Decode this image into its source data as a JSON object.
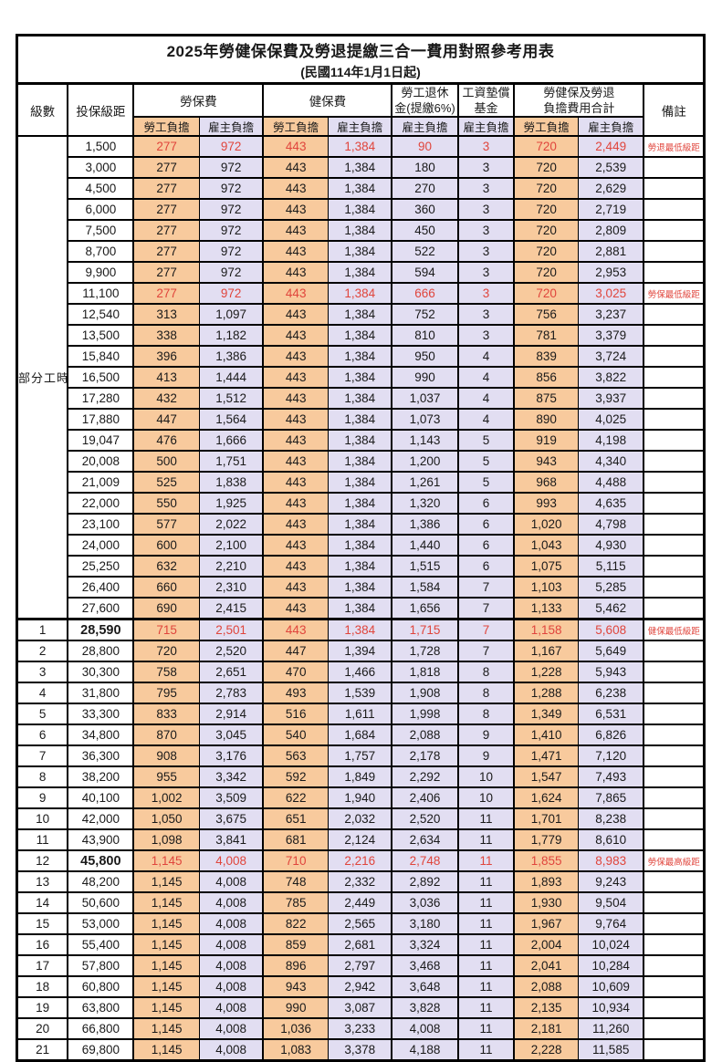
{
  "title": "2025年勞健保保費及勞退提繳三合一費用對照參考用表",
  "subtitle": "(民國114年1月1日起)",
  "header": {
    "level": "級數",
    "bracket": "投保級距",
    "labor_insurance": "勞保費",
    "health_insurance": "健保費",
    "pension": [
      "勞工退休",
      "金(提繳6%)"
    ],
    "wage_fund": [
      "工資墊償",
      "基金"
    ],
    "total": [
      "勞健保及勞退",
      "負擔費用合計"
    ],
    "employee": "勞工負擔",
    "employer": "雇主負擔",
    "remark": "備註"
  },
  "part_time": {
    "label": "部分工時",
    "row_count": 23
  },
  "colors": {
    "employee_bg": "#F8CA9D",
    "employer_bg": "#E2DEF2",
    "highlight_red": "#E0453C"
  },
  "notes": {
    "pension_min": "勞退最低級距",
    "labor_min": "勞保最低級距",
    "health_min": "健保最低級距",
    "labor_max": "勞保最高級距"
  },
  "rows": [
    {
      "level": "",
      "bracket": "1,500",
      "values": [
        "277",
        "972",
        "443",
        "1,384",
        "90",
        "3",
        "720",
        "2,449"
      ],
      "note": "勞退最低級距",
      "red": true
    },
    {
      "level": "",
      "bracket": "3,000",
      "values": [
        "277",
        "972",
        "443",
        "1,384",
        "180",
        "3",
        "720",
        "2,539"
      ]
    },
    {
      "level": "",
      "bracket": "4,500",
      "values": [
        "277",
        "972",
        "443",
        "1,384",
        "270",
        "3",
        "720",
        "2,629"
      ]
    },
    {
      "level": "",
      "bracket": "6,000",
      "values": [
        "277",
        "972",
        "443",
        "1,384",
        "360",
        "3",
        "720",
        "2,719"
      ]
    },
    {
      "level": "",
      "bracket": "7,500",
      "values": [
        "277",
        "972",
        "443",
        "1,384",
        "450",
        "3",
        "720",
        "2,809"
      ]
    },
    {
      "level": "",
      "bracket": "8,700",
      "values": [
        "277",
        "972",
        "443",
        "1,384",
        "522",
        "3",
        "720",
        "2,881"
      ]
    },
    {
      "level": "",
      "bracket": "9,900",
      "values": [
        "277",
        "972",
        "443",
        "1,384",
        "594",
        "3",
        "720",
        "2,953"
      ]
    },
    {
      "level": "",
      "bracket": "11,100",
      "values": [
        "277",
        "972",
        "443",
        "1,384",
        "666",
        "3",
        "720",
        "3,025"
      ],
      "note": "勞保最低級距",
      "red": true
    },
    {
      "level": "",
      "bracket": "12,540",
      "values": [
        "313",
        "1,097",
        "443",
        "1,384",
        "752",
        "3",
        "756",
        "3,237"
      ]
    },
    {
      "level": "",
      "bracket": "13,500",
      "values": [
        "338",
        "1,182",
        "443",
        "1,384",
        "810",
        "3",
        "781",
        "3,379"
      ]
    },
    {
      "level": "",
      "bracket": "15,840",
      "values": [
        "396",
        "1,386",
        "443",
        "1,384",
        "950",
        "4",
        "839",
        "3,724"
      ]
    },
    {
      "level": "",
      "bracket": "16,500",
      "values": [
        "413",
        "1,444",
        "443",
        "1,384",
        "990",
        "4",
        "856",
        "3,822"
      ]
    },
    {
      "level": "",
      "bracket": "17,280",
      "values": [
        "432",
        "1,512",
        "443",
        "1,384",
        "1,037",
        "4",
        "875",
        "3,937"
      ]
    },
    {
      "level": "",
      "bracket": "17,880",
      "values": [
        "447",
        "1,564",
        "443",
        "1,384",
        "1,073",
        "4",
        "890",
        "4,025"
      ]
    },
    {
      "level": "",
      "bracket": "19,047",
      "values": [
        "476",
        "1,666",
        "443",
        "1,384",
        "1,143",
        "5",
        "919",
        "4,198"
      ]
    },
    {
      "level": "",
      "bracket": "20,008",
      "values": [
        "500",
        "1,751",
        "443",
        "1,384",
        "1,200",
        "5",
        "943",
        "4,340"
      ]
    },
    {
      "level": "",
      "bracket": "21,009",
      "values": [
        "525",
        "1,838",
        "443",
        "1,384",
        "1,261",
        "5",
        "968",
        "4,488"
      ]
    },
    {
      "level": "",
      "bracket": "22,000",
      "values": [
        "550",
        "1,925",
        "443",
        "1,384",
        "1,320",
        "6",
        "993",
        "4,635"
      ]
    },
    {
      "level": "",
      "bracket": "23,100",
      "values": [
        "577",
        "2,022",
        "443",
        "1,384",
        "1,386",
        "6",
        "1,020",
        "4,798"
      ]
    },
    {
      "level": "",
      "bracket": "24,000",
      "values": [
        "600",
        "2,100",
        "443",
        "1,384",
        "1,440",
        "6",
        "1,043",
        "4,930"
      ]
    },
    {
      "level": "",
      "bracket": "25,250",
      "values": [
        "632",
        "2,210",
        "443",
        "1,384",
        "1,515",
        "6",
        "1,075",
        "5,115"
      ]
    },
    {
      "level": "",
      "bracket": "26,400",
      "values": [
        "660",
        "2,310",
        "443",
        "1,384",
        "1,584",
        "7",
        "1,103",
        "5,285"
      ]
    },
    {
      "level": "",
      "bracket": "27,600",
      "values": [
        "690",
        "2,415",
        "443",
        "1,384",
        "1,656",
        "7",
        "1,133",
        "5,462"
      ]
    },
    {
      "level": "1",
      "bracket": "28,590",
      "values": [
        "715",
        "2,501",
        "443",
        "1,384",
        "1,715",
        "7",
        "1,158",
        "5,608"
      ],
      "note": "健保最低級距",
      "red": true,
      "strong": true
    },
    {
      "level": "2",
      "bracket": "28,800",
      "values": [
        "720",
        "2,520",
        "447",
        "1,394",
        "1,728",
        "7",
        "1,167",
        "5,649"
      ]
    },
    {
      "level": "3",
      "bracket": "30,300",
      "values": [
        "758",
        "2,651",
        "470",
        "1,466",
        "1,818",
        "8",
        "1,228",
        "5,943"
      ]
    },
    {
      "level": "4",
      "bracket": "31,800",
      "values": [
        "795",
        "2,783",
        "493",
        "1,539",
        "1,908",
        "8",
        "1,288",
        "6,238"
      ]
    },
    {
      "level": "5",
      "bracket": "33,300",
      "values": [
        "833",
        "2,914",
        "516",
        "1,611",
        "1,998",
        "8",
        "1,349",
        "6,531"
      ]
    },
    {
      "level": "6",
      "bracket": "34,800",
      "values": [
        "870",
        "3,045",
        "540",
        "1,684",
        "2,088",
        "9",
        "1,410",
        "6,826"
      ]
    },
    {
      "level": "7",
      "bracket": "36,300",
      "values": [
        "908",
        "3,176",
        "563",
        "1,757",
        "2,178",
        "9",
        "1,471",
        "7,120"
      ]
    },
    {
      "level": "8",
      "bracket": "38,200",
      "values": [
        "955",
        "3,342",
        "592",
        "1,849",
        "2,292",
        "10",
        "1,547",
        "7,493"
      ]
    },
    {
      "level": "9",
      "bracket": "40,100",
      "values": [
        "1,002",
        "3,509",
        "622",
        "1,940",
        "2,406",
        "10",
        "1,624",
        "7,865"
      ]
    },
    {
      "level": "10",
      "bracket": "42,000",
      "values": [
        "1,050",
        "3,675",
        "651",
        "2,032",
        "2,520",
        "11",
        "1,701",
        "8,238"
      ]
    },
    {
      "level": "11",
      "bracket": "43,900",
      "values": [
        "1,098",
        "3,841",
        "681",
        "2,124",
        "2,634",
        "11",
        "1,779",
        "8,610"
      ]
    },
    {
      "level": "12",
      "bracket": "45,800",
      "values": [
        "1,145",
        "4,008",
        "710",
        "2,216",
        "2,748",
        "11",
        "1,855",
        "8,983"
      ],
      "note": "勞保最高級距",
      "red": true,
      "strong": true
    },
    {
      "level": "13",
      "bracket": "48,200",
      "values": [
        "1,145",
        "4,008",
        "748",
        "2,332",
        "2,892",
        "11",
        "1,893",
        "9,243"
      ]
    },
    {
      "level": "14",
      "bracket": "50,600",
      "values": [
        "1,145",
        "4,008",
        "785",
        "2,449",
        "3,036",
        "11",
        "1,930",
        "9,504"
      ]
    },
    {
      "level": "15",
      "bracket": "53,000",
      "values": [
        "1,145",
        "4,008",
        "822",
        "2,565",
        "3,180",
        "11",
        "1,967",
        "9,764"
      ]
    },
    {
      "level": "16",
      "bracket": "55,400",
      "values": [
        "1,145",
        "4,008",
        "859",
        "2,681",
        "3,324",
        "11",
        "2,004",
        "10,024"
      ]
    },
    {
      "level": "17",
      "bracket": "57,800",
      "values": [
        "1,145",
        "4,008",
        "896",
        "2,797",
        "3,468",
        "11",
        "2,041",
        "10,284"
      ]
    },
    {
      "level": "18",
      "bracket": "60,800",
      "values": [
        "1,145",
        "4,008",
        "943",
        "2,942",
        "3,648",
        "11",
        "2,088",
        "10,609"
      ]
    },
    {
      "level": "19",
      "bracket": "63,800",
      "values": [
        "1,145",
        "4,008",
        "990",
        "3,087",
        "3,828",
        "11",
        "2,135",
        "10,934"
      ]
    },
    {
      "level": "20",
      "bracket": "66,800",
      "values": [
        "1,145",
        "4,008",
        "1,036",
        "3,233",
        "4,008",
        "11",
        "2,181",
        "11,260"
      ]
    },
    {
      "level": "21",
      "bracket": "69,800",
      "values": [
        "1,145",
        "4,008",
        "1,083",
        "3,378",
        "4,188",
        "11",
        "2,228",
        "11,585"
      ]
    }
  ]
}
